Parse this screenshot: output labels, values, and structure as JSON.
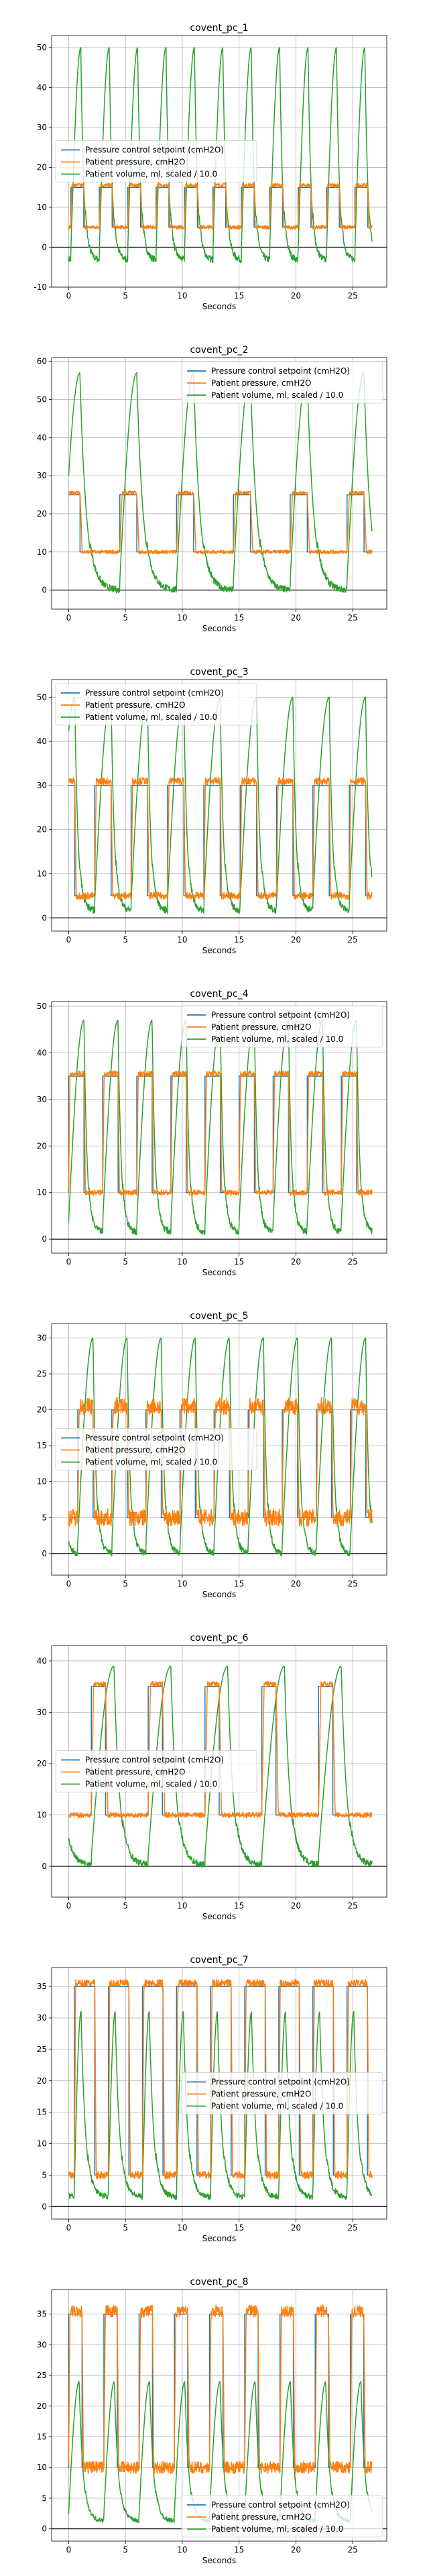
{
  "colors": {
    "setpoint": "#1f77b4",
    "pressure": "#ff7f0e",
    "volume": "#2ca02c",
    "grid": "#b0b0b0",
    "axis": "#000000"
  },
  "chart_data": [
    {
      "type": "line",
      "title": "covent_pc_1",
      "xlabel": "Seconds",
      "ylabel": "",
      "xlim": [
        -1.5,
        28
      ],
      "ylim": [
        -10,
        53
      ],
      "xticks": [
        0,
        5,
        10,
        15,
        20,
        25
      ],
      "yticks": [
        -10,
        0,
        10,
        20,
        30,
        40,
        50
      ],
      "grid": true,
      "legend_position": "center-left",
      "legend": [
        "Pressure control setpoint (cmH2O)",
        "Patient pressure, cmH2O",
        "Patient volume, ml, scaled / 10.0"
      ],
      "series": [
        {
          "name": "Pressure control setpoint (cmH2O)",
          "pattern": {
            "period": 2.5,
            "x0": 0,
            "x1": 26.7,
            "low": 5,
            "high": 15,
            "duty": 0.45,
            "phase": 0.2
          }
        },
        {
          "name": "Patient pressure, cmH2O",
          "pattern": {
            "period": 2.5,
            "x0": 0,
            "x1": 26.7,
            "low": 5,
            "high": 15.5,
            "duty": 0.45,
            "phase": 0.2,
            "noise": 0.5
          }
        },
        {
          "name": "Patient volume, ml, scaled / 10.0",
          "pattern": {
            "period": 2.5,
            "x0": 0,
            "x1": 26.7,
            "low": -5,
            "high": 50,
            "peak_at": 0.35,
            "phase": 0.2
          }
        }
      ]
    },
    {
      "type": "line",
      "title": "covent_pc_2",
      "xlabel": "Seconds",
      "ylabel": "",
      "xlim": [
        -1.5,
        28
      ],
      "ylim": [
        -5,
        61
      ],
      "xticks": [
        0,
        5,
        10,
        15,
        20,
        25
      ],
      "yticks": [
        0,
        10,
        20,
        30,
        40,
        50,
        60
      ],
      "grid": true,
      "legend_position": "upper-right",
      "legend": [
        "Pressure control setpoint (cmH2O)",
        "Patient pressure, cmH2O",
        "Patient volume, ml, scaled / 10.0"
      ],
      "series": [
        {
          "name": "Pressure control setpoint (cmH2O)",
          "pattern": {
            "period": 5,
            "x0": 0,
            "x1": 26.7,
            "low": 10,
            "high": 25,
            "duty": 0.3,
            "phase": 4.5
          }
        },
        {
          "name": "Patient pressure, cmH2O",
          "pattern": {
            "period": 5,
            "x0": 0,
            "x1": 26.7,
            "low": 10,
            "high": 25.5,
            "duty": 0.3,
            "phase": 4.5,
            "noise": 0.5
          }
        },
        {
          "name": "Patient volume, ml, scaled / 10.0",
          "pattern": {
            "period": 5,
            "x0": 0,
            "x1": 26.7,
            "low": -2,
            "high": 57,
            "peak_at": 0.3,
            "phase": 4.5
          }
        }
      ]
    },
    {
      "type": "line",
      "title": "covent_pc_3",
      "xlabel": "Seconds",
      "ylabel": "",
      "xlim": [
        -1.5,
        28
      ],
      "ylim": [
        -3,
        54
      ],
      "xticks": [
        0,
        5,
        10,
        15,
        20,
        25
      ],
      "yticks": [
        0,
        10,
        20,
        30,
        40,
        50
      ],
      "grid": true,
      "legend_position": "upper-left",
      "legend": [
        "Pressure control setpoint (cmH2O)",
        "Patient pressure, cmH2O",
        "Patient volume, ml, scaled / 10.0"
      ],
      "series": [
        {
          "name": "Pressure control setpoint (cmH2O)",
          "pattern": {
            "period": 3.2,
            "x0": 0,
            "x1": 26.7,
            "low": 5,
            "high": 30,
            "duty": 0.45,
            "phase": 2.3
          }
        },
        {
          "name": "Patient pressure, cmH2O",
          "pattern": {
            "period": 3.2,
            "x0": 0,
            "x1": 26.7,
            "low": 5,
            "high": 31,
            "duty": 0.45,
            "phase": 2.3,
            "noise": 0.8
          }
        },
        {
          "name": "Patient volume, ml, scaled / 10.0",
          "pattern": {
            "period": 3.2,
            "x0": 0,
            "x1": 26.7,
            "low": 0,
            "high": 50,
            "peak_at": 0.45,
            "phase": 2.3
          }
        }
      ]
    },
    {
      "type": "line",
      "title": "covent_pc_4",
      "xlabel": "Seconds",
      "ylabel": "",
      "xlim": [
        -1.5,
        28
      ],
      "ylim": [
        -3,
        51
      ],
      "xticks": [
        0,
        5,
        10,
        15,
        20,
        25
      ],
      "yticks": [
        0,
        10,
        20,
        30,
        40,
        50
      ],
      "grid": true,
      "legend_position": "upper-right",
      "legend": [
        "Pressure control setpoint (cmH2O)",
        "Patient pressure, cmH2O",
        "Patient volume, ml, scaled / 10.0"
      ],
      "series": [
        {
          "name": "Pressure control setpoint (cmH2O)",
          "pattern": {
            "period": 3,
            "x0": 0,
            "x1": 26.7,
            "low": 10,
            "high": 35,
            "duty": 0.45,
            "phase": 0
          }
        },
        {
          "name": "Patient pressure, cmH2O",
          "pattern": {
            "period": 3,
            "x0": 0,
            "x1": 26.7,
            "low": 10,
            "high": 35.5,
            "duty": 0.45,
            "phase": 0,
            "noise": 0.6
          }
        },
        {
          "name": "Patient volume, ml, scaled / 10.0",
          "pattern": {
            "period": 3,
            "x0": 0,
            "x1": 26.7,
            "low": 0,
            "high": 47,
            "peak_at": 0.45,
            "phase": 0
          }
        }
      ]
    },
    {
      "type": "line",
      "title": "covent_pc_5",
      "xlabel": "Seconds",
      "ylabel": "",
      "xlim": [
        -1.5,
        28
      ],
      "ylim": [
        -3,
        32
      ],
      "xticks": [
        0,
        5,
        10,
        15,
        20,
        25
      ],
      "yticks": [
        0,
        5,
        10,
        15,
        20,
        25,
        30
      ],
      "grid": true,
      "legend_position": "center-left",
      "legend": [
        "Pressure control setpoint (cmH2O)",
        "Patient pressure, cmH2O",
        "Patient volume, ml, scaled / 10.0"
      ],
      "series": [
        {
          "name": "Pressure control setpoint (cmH2O)",
          "pattern": {
            "period": 3,
            "x0": 0,
            "x1": 26.7,
            "low": 5,
            "high": 20,
            "duty": 0.45,
            "phase": 0.8
          }
        },
        {
          "name": "Patient pressure, cmH2O",
          "pattern": {
            "period": 3,
            "x0": 0,
            "x1": 26.7,
            "low": 5,
            "high": 20.5,
            "duty": 0.45,
            "phase": 0.8,
            "noise": 1.2
          }
        },
        {
          "name": "Patient volume, ml, scaled / 10.0",
          "pattern": {
            "period": 3,
            "x0": 0,
            "x1": 26.7,
            "low": -1,
            "high": 30,
            "peak_at": 0.45,
            "phase": 0.8
          }
        }
      ]
    },
    {
      "type": "line",
      "title": "covent_pc_6",
      "xlabel": "Seconds",
      "ylabel": "",
      "xlim": [
        -1.5,
        28
      ],
      "ylim": [
        -6,
        43
      ],
      "xticks": [
        0,
        5,
        10,
        15,
        20,
        25
      ],
      "yticks": [
        0,
        10,
        20,
        30,
        40
      ],
      "grid": true,
      "legend_position": "center-left",
      "legend": [
        "Pressure control setpoint (cmH2O)",
        "Patient pressure, cmH2O",
        "Patient volume, ml, scaled / 10.0"
      ],
      "series": [
        {
          "name": "Pressure control setpoint (cmH2O)",
          "pattern": {
            "period": 5,
            "x0": 0,
            "x1": 26.7,
            "low": 10,
            "high": 35,
            "duty": 0.25,
            "phase": 2
          }
        },
        {
          "name": "Patient pressure, cmH2O",
          "pattern": {
            "period": 5,
            "x0": 0,
            "x1": 26.7,
            "low": 10,
            "high": 35.5,
            "duty": 0.25,
            "phase": 2,
            "noise": 0.5
          }
        },
        {
          "name": "Patient volume, ml, scaled / 10.0",
          "pattern": {
            "period": 5,
            "x0": 0,
            "x1": 26.7,
            "low": -1,
            "high": 39,
            "peak_at": 0.4,
            "phase": 2
          }
        }
      ]
    },
    {
      "type": "line",
      "title": "covent_pc_7",
      "xlabel": "Seconds",
      "ylabel": "",
      "xlim": [
        -1.5,
        28
      ],
      "ylim": [
        -2,
        38
      ],
      "xticks": [
        0,
        5,
        10,
        15,
        20,
        25
      ],
      "yticks": [
        0,
        5,
        10,
        15,
        20,
        25,
        30,
        35
      ],
      "grid": true,
      "legend_position": "center-right",
      "legend": [
        "Pressure control setpoint (cmH2O)",
        "Patient pressure, cmH2O",
        "Patient volume, ml, scaled / 10.0"
      ],
      "series": [
        {
          "name": "Pressure control setpoint (cmH2O)",
          "pattern": {
            "period": 3,
            "x0": 0,
            "x1": 26.7,
            "low": 5,
            "high": 35,
            "duty": 0.6,
            "phase": 0.5
          }
        },
        {
          "name": "Patient pressure, cmH2O",
          "pattern": {
            "period": 3,
            "x0": 0,
            "x1": 26.7,
            "low": 5,
            "high": 35.5,
            "duty": 0.6,
            "phase": 0.5,
            "noise": 0.6
          }
        },
        {
          "name": "Patient volume, ml, scaled / 10.0",
          "pattern": {
            "period": 3,
            "x0": 0,
            "x1": 26.7,
            "low": 0.5,
            "high": 31,
            "peak_at": 0.2,
            "phase": 0.5
          }
        }
      ]
    },
    {
      "type": "line",
      "title": "covent_pc_8",
      "xlabel": "Seconds",
      "ylabel": "",
      "xlim": [
        -1.5,
        28
      ],
      "ylim": [
        -2,
        39
      ],
      "xticks": [
        0,
        5,
        10,
        15,
        20,
        25
      ],
      "yticks": [
        0,
        5,
        10,
        15,
        20,
        25,
        30,
        35
      ],
      "grid": true,
      "legend_position": "lower-right",
      "legend": [
        "Pressure control setpoint (cmH2O)",
        "Patient pressure, cmH2O",
        "Patient volume, ml, scaled / 10.0"
      ],
      "series": [
        {
          "name": "Pressure control setpoint (cmH2O)",
          "pattern": {
            "period": 3.1,
            "x0": 0,
            "x1": 26.7,
            "low": 10,
            "high": 35,
            "duty": 0.38,
            "phase": 0
          }
        },
        {
          "name": "Patient pressure, cmH2O",
          "pattern": {
            "period": 3.1,
            "x0": 0,
            "x1": 26.7,
            "low": 10,
            "high": 35.5,
            "duty": 0.38,
            "phase": 0,
            "noise": 1.0
          }
        },
        {
          "name": "Patient volume, ml, scaled / 10.0",
          "pattern": {
            "period": 3.1,
            "x0": 0,
            "x1": 26.7,
            "low": 0.5,
            "high": 24,
            "peak_at": 0.3,
            "phase": 0
          }
        }
      ]
    }
  ]
}
